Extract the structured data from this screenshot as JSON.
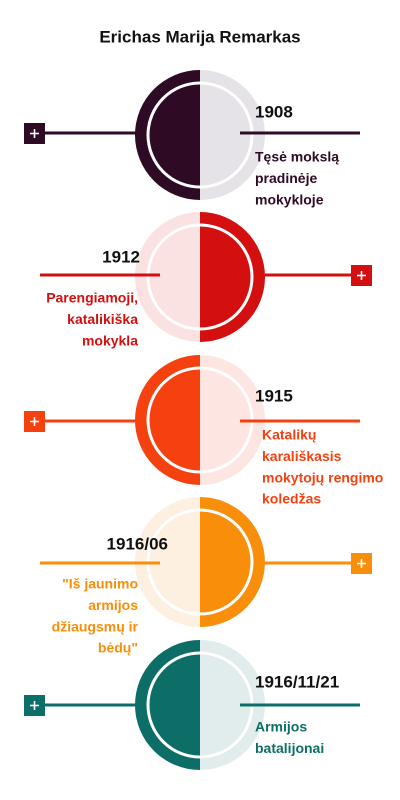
{
  "title": "Erichas Marija Remarkas",
  "events": [
    {
      "year": "1908",
      "lines": [
        "Tęsė mokslą",
        "pradinėje",
        "mokykloje"
      ]
    },
    {
      "year": "1912",
      "lines": [
        "Parengiamoji,",
        "katalikiška",
        "mokykla"
      ]
    },
    {
      "year": "1915",
      "lines": [
        "Katalikų",
        "karališkasis",
        "mokytojų rengimo",
        "koledžas"
      ]
    },
    {
      "year": "1916/06",
      "lines": [
        "\"Iš jaunimo",
        "armijos",
        "džiaugsmų ir",
        "bėdų\""
      ]
    },
    {
      "year": "1916/11/21",
      "lines": [
        "Armijos",
        "batalijonai"
      ]
    }
  ]
}
